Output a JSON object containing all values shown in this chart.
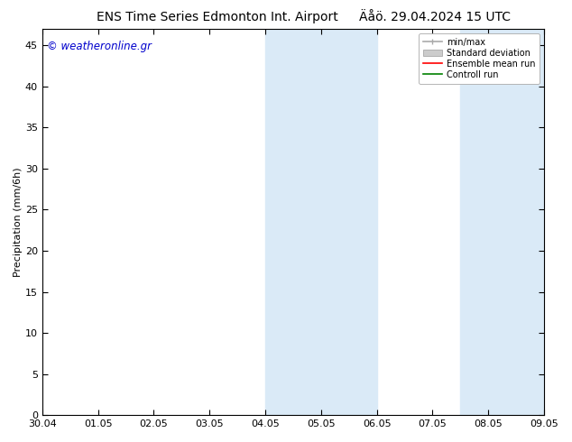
{
  "title_left": "ENS Time Series Edmonton Int. Airport",
  "title_right": "Äåö. 29.04.2024 15 UTC",
  "ylabel": "Precipitation (mm/6h)",
  "watermark": "© weatheronline.gr",
  "xtick_labels": [
    "30.04",
    "01.05",
    "02.05",
    "03.05",
    "04.05",
    "05.05",
    "06.05",
    "07.05",
    "08.05",
    "09.05"
  ],
  "ytick_values": [
    0,
    5,
    10,
    15,
    20,
    25,
    30,
    35,
    40,
    45
  ],
  "ylim": [
    0,
    47
  ],
  "xlim": [
    0,
    9
  ],
  "shaded_bands": [
    {
      "x_start": 4.0,
      "x_end": 6.0,
      "color": "#daeaf7"
    },
    {
      "x_start": 7.5,
      "x_end": 9.0,
      "color": "#daeaf7"
    }
  ],
  "legend_entries": [
    {
      "label": "min/max",
      "color": "#aaaaaa",
      "lw": 1.2,
      "style": "minmax"
    },
    {
      "label": "Standard deviation",
      "color": "#cccccc",
      "lw": 8,
      "style": "band"
    },
    {
      "label": "Ensemble mean run",
      "color": "#ff0000",
      "lw": 1.2,
      "style": "line"
    },
    {
      "label": "Controll run",
      "color": "#008000",
      "lw": 1.2,
      "style": "line"
    }
  ],
  "background_color": "#ffffff",
  "plot_bg_color": "#ffffff",
  "border_color": "#000000",
  "title_fontsize": 10,
  "watermark_color": "#0000cc",
  "watermark_fontsize": 8.5,
  "tick_fontsize": 8
}
